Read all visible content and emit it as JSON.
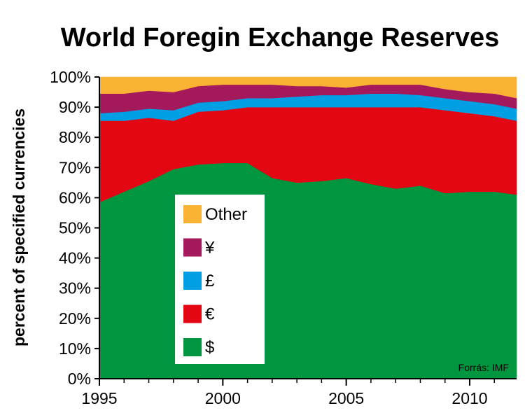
{
  "chart_data": {
    "type": "area",
    "stacked": true,
    "title": "World Foregin Exchange Reserves",
    "ylabel": "percent of specified currencies",
    "xlabel": "",
    "source": "Forrás: IMF",
    "xlim": [
      1995,
      2011.9
    ],
    "ylim": [
      0,
      100
    ],
    "x_ticks": [
      1995,
      2000,
      2005,
      2010
    ],
    "x_tick_labels": [
      "1995",
      "2000",
      "2005",
      "2010"
    ],
    "y_tick_labels": [
      "0%",
      "10%",
      "20%",
      "30%",
      "40%",
      "50%",
      "60%",
      "70%",
      "80%",
      "90%",
      "100%"
    ],
    "legend_placement": "center-left",
    "grid": false,
    "x": [
      1995,
      1996,
      1997,
      1998,
      1999,
      2000,
      2001,
      2002,
      2003,
      2004,
      2005,
      2006,
      2007,
      2008,
      2009,
      2010,
      2011,
      2011.9
    ],
    "series": [
      {
        "name": "$",
        "color": "#009640",
        "values": [
          58.5,
          62.0,
          65.5,
          69.5,
          71.0,
          71.5,
          71.5,
          66.5,
          65.0,
          65.5,
          66.5,
          64.5,
          63.0,
          64.0,
          61.5,
          62.0,
          62.0,
          61.0
        ]
      },
      {
        "name": "€",
        "color": "#e30613",
        "values": [
          27.0,
          23.5,
          21.0,
          16.0,
          17.5,
          17.5,
          18.5,
          23.5,
          25.0,
          24.5,
          23.5,
          25.5,
          27.0,
          26.0,
          27.5,
          26.0,
          25.0,
          24.5
        ]
      },
      {
        "name": "£",
        "color": "#009fe3",
        "values": [
          2.5,
          3.0,
          3.0,
          3.5,
          3.0,
          3.0,
          3.0,
          3.0,
          3.5,
          4.0,
          4.0,
          4.5,
          4.5,
          4.0,
          4.0,
          4.0,
          4.0,
          4.0
        ]
      },
      {
        "name": "¥",
        "color": "#a3195b",
        "values": [
          6.5,
          6.0,
          6.0,
          6.0,
          5.5,
          5.5,
          4.5,
          4.5,
          3.5,
          3.0,
          2.5,
          3.0,
          3.0,
          3.5,
          3.0,
          3.0,
          3.5,
          3.5
        ]
      },
      {
        "name": "Other",
        "color": "#f9b233",
        "values": [
          5.5,
          5.5,
          4.5,
          5.0,
          3.0,
          2.5,
          2.5,
          2.5,
          3.0,
          3.0,
          3.5,
          2.5,
          2.5,
          2.5,
          4.0,
          5.0,
          5.5,
          7.0
        ]
      }
    ]
  }
}
